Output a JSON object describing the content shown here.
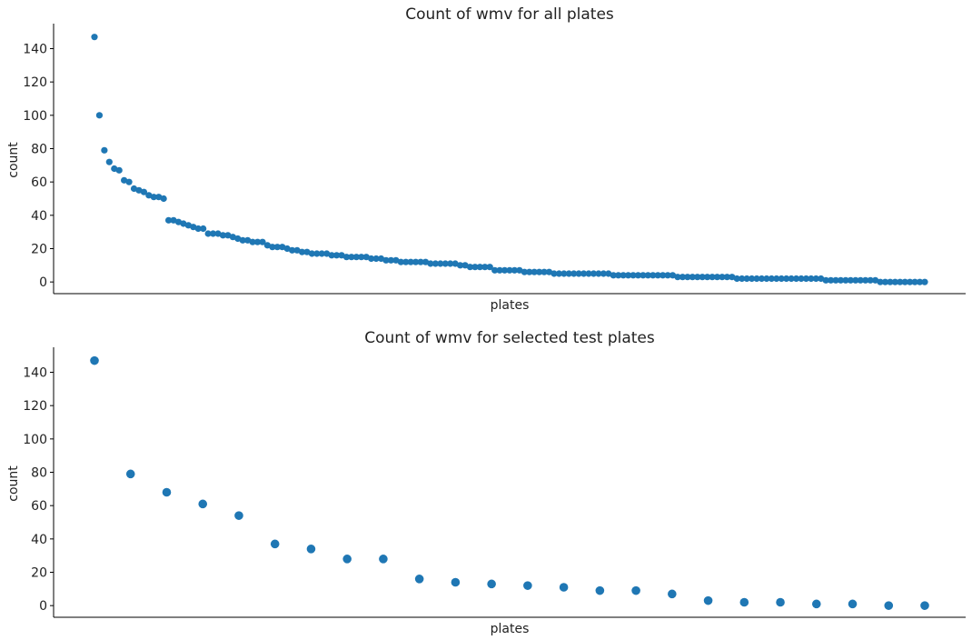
{
  "chart_data": [
    {
      "type": "scatter",
      "title": "Count of wmv for all plates",
      "xlabel": "plates",
      "ylabel": "count",
      "ylim": [
        -7,
        155
      ],
      "yticks": [
        0,
        20,
        40,
        60,
        80,
        100,
        120,
        140
      ],
      "grid": false,
      "legend": "none",
      "color": "#1f77b4",
      "values": [
        147,
        100,
        79,
        72,
        68,
        67,
        61,
        60,
        56,
        55,
        54,
        52,
        51,
        51,
        50,
        37,
        37,
        36,
        35,
        34,
        33,
        32,
        32,
        29,
        29,
        29,
        28,
        28,
        27,
        26,
        25,
        25,
        24,
        24,
        24,
        22,
        21,
        21,
        21,
        20,
        19,
        19,
        18,
        18,
        17,
        17,
        17,
        17,
        16,
        16,
        16,
        15,
        15,
        15,
        15,
        15,
        14,
        14,
        14,
        13,
        13,
        13,
        12,
        12,
        12,
        12,
        12,
        12,
        11,
        11,
        11,
        11,
        11,
        11,
        10,
        10,
        9,
        9,
        9,
        9,
        9,
        7,
        7,
        7,
        7,
        7,
        7,
        6,
        6,
        6,
        6,
        6,
        6,
        5,
        5,
        5,
        5,
        5,
        5,
        5,
        5,
        5,
        5,
        5,
        5,
        4,
        4,
        4,
        4,
        4,
        4,
        4,
        4,
        4,
        4,
        4,
        4,
        4,
        3,
        3,
        3,
        3,
        3,
        3,
        3,
        3,
        3,
        3,
        3,
        3,
        2,
        2,
        2,
        2,
        2,
        2,
        2,
        2,
        2,
        2,
        2,
        2,
        2,
        2,
        2,
        2,
        2,
        2,
        1,
        1,
        1,
        1,
        1,
        1,
        1,
        1,
        1,
        1,
        1,
        0,
        0,
        0,
        0,
        0,
        0,
        0,
        0,
        0,
        0
      ]
    },
    {
      "type": "scatter",
      "title": "Count of wmv for selected test plates",
      "xlabel": "plates",
      "ylabel": "count",
      "ylim": [
        -7,
        155
      ],
      "yticks": [
        0,
        20,
        40,
        60,
        80,
        100,
        120,
        140
      ],
      "grid": false,
      "legend": "none",
      "color": "#1f77b4",
      "values": [
        147,
        79,
        68,
        61,
        54,
        37,
        34,
        28,
        28,
        16,
        14,
        13,
        12,
        11,
        9,
        9,
        7,
        3,
        2,
        2,
        1,
        1,
        0,
        0
      ]
    }
  ]
}
